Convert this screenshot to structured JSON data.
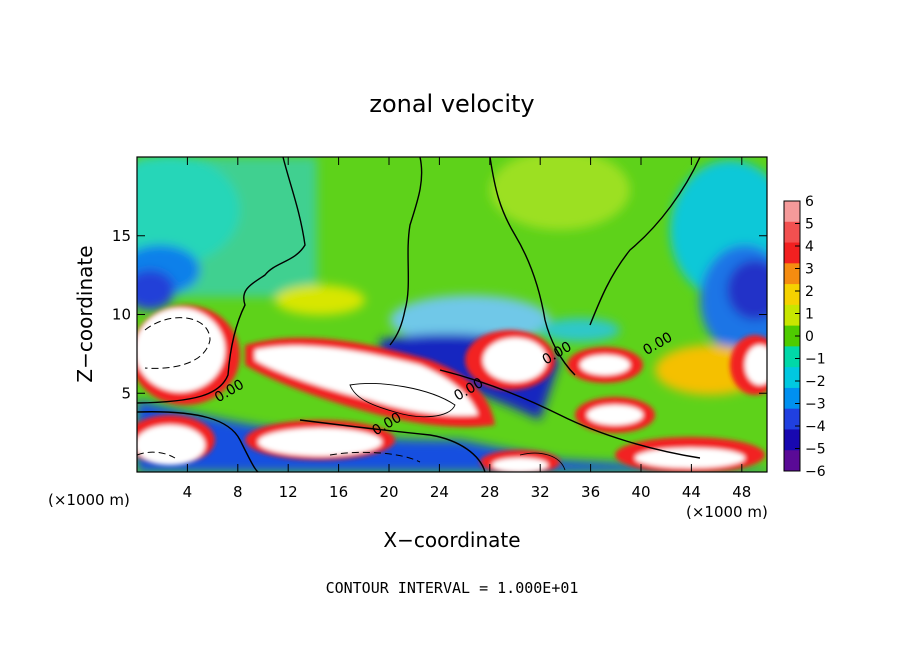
{
  "chart_data": {
    "type": "heatmap",
    "title": "zonal velocity",
    "xlabel": "X−coordinate",
    "ylabel": "Z−coordinate",
    "x_unit_left": "(×1000 m)",
    "x_unit_right": "(×1000 m)",
    "xlim": [
      0,
      50
    ],
    "ylim": [
      0,
      20
    ],
    "x_ticks": [
      4,
      8,
      12,
      16,
      20,
      24,
      28,
      32,
      36,
      40,
      44,
      48
    ],
    "y_ticks": [
      5,
      10,
      15
    ],
    "colorbar": {
      "ticks": [
        6,
        5,
        4,
        3,
        2,
        1,
        0,
        -1,
        -2,
        -3,
        -4,
        -5,
        -6
      ],
      "tick_labels": [
        "6",
        "5",
        "4",
        "3",
        "2",
        "1",
        "0",
        "−1",
        "−2",
        "−3",
        "−4",
        "−5",
        "−6"
      ],
      "colors": [
        "#f59a9a",
        "#f25050",
        "#f22020",
        "#f58c10",
        "#f5d200",
        "#c8e600",
        "#4ecc00",
        "#00d8a8",
        "#00c8e0",
        "#0090f0",
        "#2040e0",
        "#1808b0",
        "#5a0a96"
      ]
    },
    "contour_labels": [
      {
        "text": "0.00",
        "x": 7.5,
        "y": 4.9
      },
      {
        "text": "0.00",
        "x": 26.5,
        "y": 5.0
      },
      {
        "text": "0.00",
        "x": 20.0,
        "y": 2.8
      },
      {
        "text": "0.00",
        "x": 33.5,
        "y": 7.3
      },
      {
        "text": "0.00",
        "x": 41.5,
        "y": 7.9
      }
    ],
    "grid": false,
    "legend": "colorbar-right"
  },
  "footer": "CONTOUR INTERVAL = 1.000E+01"
}
